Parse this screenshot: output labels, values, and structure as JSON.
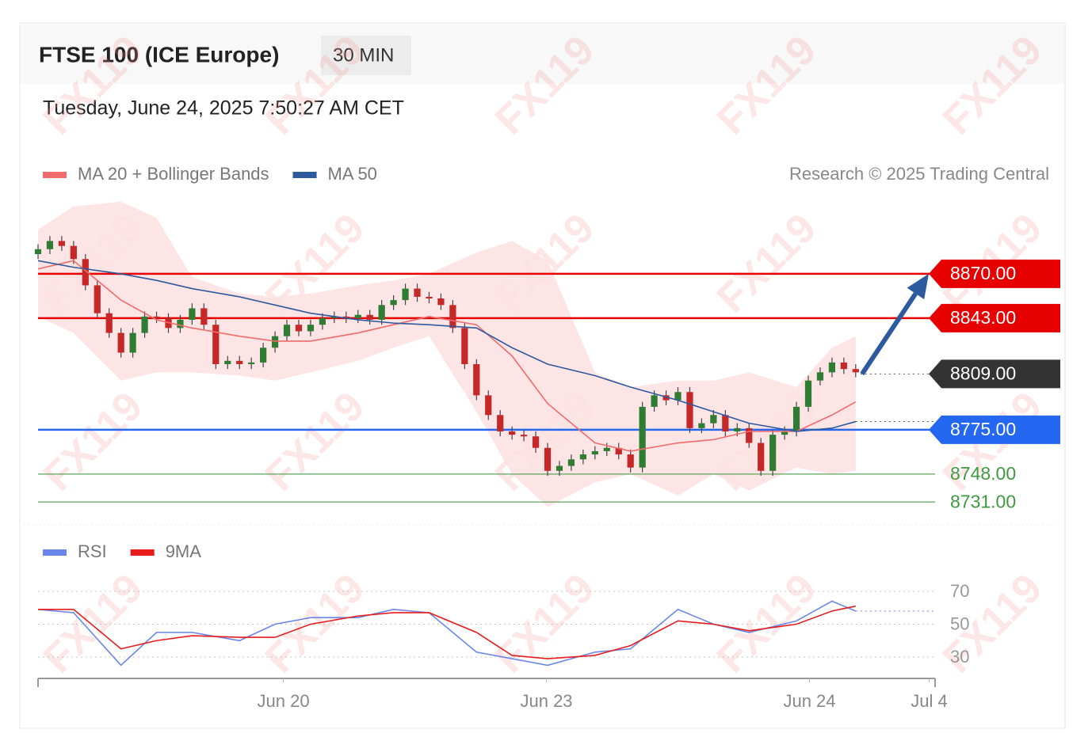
{
  "header": {
    "title": "FTSE 100 (ICE Europe)",
    "interval": "30 MIN",
    "timestamp": "Tuesday, June 24, 2025 7:50:27 AM CET",
    "credit": "Research © 2025 Trading Central",
    "watermark": "FX119"
  },
  "chart_data": [
    {
      "type": "candlestick",
      "xlim": [
        0,
        75.7
      ],
      "ylim": [
        8720,
        8916
      ],
      "candles": {
        "up_color": "#2e7d32",
        "down_color": "#c62828",
        "open": [
          8882,
          8885,
          8890,
          8887,
          8879,
          8863,
          8846,
          8834,
          8822,
          8834,
          8844,
          8843,
          8837,
          8842,
          8849,
          8839,
          8815,
          8817,
          8815,
          8816,
          8825,
          8832,
          8839,
          8835,
          8839,
          8843,
          8844,
          8843,
          8845,
          8842,
          8851,
          8854,
          8861,
          8856,
          8855,
          8851,
          8837,
          8815,
          8796,
          8784,
          8774,
          8772,
          8771,
          8764,
          8750,
          8753,
          8757,
          8760,
          8762,
          8764,
          8760,
          8752,
          8789,
          8796,
          8793,
          8798,
          8776,
          8779,
          8784,
          8774,
          8776,
          8767,
          8750,
          8772,
          8774,
          8789,
          8805,
          8810,
          8816,
          8812
        ],
        "high": [
          8888,
          8893,
          8893,
          8890,
          8882,
          8866,
          8849,
          8837,
          8837,
          8847,
          8847,
          8846,
          8845,
          8852,
          8852,
          8842,
          8820,
          8820,
          8819,
          8828,
          8835,
          8842,
          8842,
          8842,
          8846,
          8847,
          8847,
          8848,
          8848,
          8854,
          8857,
          8864,
          8864,
          8859,
          8858,
          8854,
          8840,
          8818,
          8799,
          8787,
          8777,
          8775,
          8774,
          8767,
          8756,
          8760,
          8763,
          8765,
          8767,
          8767,
          8763,
          8792,
          8799,
          8799,
          8801,
          8801,
          8782,
          8787,
          8787,
          8779,
          8779,
          8770,
          8775,
          8777,
          8792,
          8808,
          8813,
          8819,
          8819,
          8815
        ],
        "low": [
          8879,
          8882,
          8884,
          8876,
          8860,
          8843,
          8831,
          8819,
          8819,
          8831,
          8840,
          8834,
          8834,
          8839,
          8836,
          8812,
          8812,
          8812,
          8812,
          8813,
          8822,
          8829,
          8832,
          8832,
          8836,
          8840,
          8840,
          8840,
          8839,
          8839,
          8848,
          8851,
          8853,
          8852,
          8848,
          8834,
          8812,
          8793,
          8781,
          8771,
          8769,
          8768,
          8761,
          8747,
          8747,
          8750,
          8754,
          8757,
          8759,
          8757,
          8749,
          8749,
          8786,
          8790,
          8790,
          8773,
          8773,
          8776,
          8771,
          8771,
          8764,
          8747,
          8747,
          8769,
          8771,
          8786,
          8802,
          8807,
          8809,
          8807
        ],
        "close": [
          8885,
          8890,
          8887,
          8879,
          8863,
          8846,
          8834,
          8822,
          8834,
          8844,
          8843,
          8837,
          8842,
          8849,
          8839,
          8815,
          8817,
          8815,
          8816,
          8825,
          8832,
          8839,
          8835,
          8839,
          8843,
          8844,
          8843,
          8845,
          8842,
          8851,
          8854,
          8861,
          8856,
          8855,
          8851,
          8837,
          8815,
          8796,
          8784,
          8774,
          8772,
          8771,
          8764,
          8750,
          8753,
          8757,
          8760,
          8762,
          8764,
          8760,
          8752,
          8789,
          8796,
          8793,
          8798,
          8776,
          8779,
          8784,
          8774,
          8776,
          8767,
          8750,
          8772,
          8774,
          8789,
          8805,
          8810,
          8816,
          8812,
          8810
        ]
      },
      "series": [
        {
          "name": "MA 20 + Bollinger Bands",
          "color": "#f26b6b",
          "band_color": "#fde0e0",
          "x": [
            0,
            3,
            7,
            10,
            13,
            17,
            20,
            23,
            27,
            30,
            33,
            37,
            40,
            43,
            47,
            50,
            54,
            57,
            60,
            64,
            67,
            69
          ],
          "values": [
            8873,
            8878,
            8854,
            8842,
            8837,
            8832,
            8829,
            8829,
            8834,
            8839,
            8844,
            8839,
            8820,
            8791,
            8767,
            8762,
            8767,
            8769,
            8774,
            8774,
            8784,
            8792
          ],
          "upper": [
            8897,
            8911,
            8914,
            8904,
            8868,
            8858,
            8856,
            8858,
            8863,
            8866,
            8870,
            8883,
            8890,
            8878,
            8810,
            8801,
            8805,
            8805,
            8810,
            8801,
            8825,
            8832
          ],
          "lower": [
            8844,
            8834,
            8805,
            8810,
            8810,
            8808,
            8805,
            8810,
            8817,
            8825,
            8832,
            8786,
            8748,
            8728,
            8743,
            8748,
            8735,
            8748,
            8738,
            8752,
            8748,
            8750
          ]
        },
        {
          "name": "MA 50",
          "color": "#2d5a9e",
          "x": [
            0,
            3,
            7,
            10,
            13,
            17,
            20,
            23,
            27,
            30,
            33,
            37,
            40,
            43,
            47,
            50,
            54,
            57,
            60,
            64,
            67,
            69
          ],
          "values": [
            8878,
            8874,
            8870,
            8866,
            8861,
            8856,
            8851,
            8846,
            8842,
            8840,
            8839,
            8837,
            8825,
            8815,
            8808,
            8801,
            8793,
            8786,
            8779,
            8774,
            8776,
            8780
          ]
        }
      ],
      "levels": [
        {
          "value": 8870,
          "label": "8870.00",
          "color": "#e60000",
          "style": "box",
          "line": "solid"
        },
        {
          "value": 8843,
          "label": "8843.00",
          "color": "#e60000",
          "style": "box",
          "line": "solid"
        },
        {
          "value": 8809,
          "label": "8809.00",
          "color": "#333333",
          "style": "box",
          "line": "dotted"
        },
        {
          "value": 8775,
          "label": "8775.00",
          "color": "#2468f2",
          "style": "box",
          "line": "solid"
        },
        {
          "value": 8748,
          "label": "8748.00",
          "color": "#3f9a3f",
          "style": "text",
          "line": "solid"
        },
        {
          "value": 8731,
          "label": "8731.00",
          "color": "#3f9a3f",
          "style": "text",
          "line": "solid"
        }
      ],
      "forecast": {
        "from_level": 2,
        "to_level": 0,
        "color": "#2d5a9e"
      }
    },
    {
      "type": "line",
      "xlim": [
        0,
        75.7
      ],
      "ylim": [
        17,
        75
      ],
      "yticks": [
        30,
        50,
        70
      ],
      "xticks": [
        {
          "value": 20.7,
          "label": "Jun 20"
        },
        {
          "value": 42.9,
          "label": "Jun 23"
        },
        {
          "value": 65.1,
          "label": "Jun 24"
        },
        {
          "value": 75.2,
          "label": "Jul 4"
        }
      ],
      "series": [
        {
          "name": "RSI",
          "color": "#6a86e8",
          "x": [
            0,
            3,
            7,
            10,
            13,
            17,
            20,
            23,
            27,
            30,
            33,
            37,
            40,
            43,
            47,
            50,
            54,
            57,
            60,
            64,
            67,
            69
          ],
          "values": [
            59,
            57,
            25,
            45,
            45,
            40,
            50,
            54,
            54,
            59,
            57,
            33,
            29,
            25,
            33,
            35,
            59,
            50,
            45,
            52,
            64,
            58
          ]
        },
        {
          "name": "9MA",
          "color": "#e81c1c",
          "x": [
            0,
            3,
            7,
            10,
            13,
            17,
            20,
            23,
            27,
            30,
            33,
            37,
            40,
            43,
            47,
            50,
            54,
            57,
            60,
            64,
            67,
            69
          ],
          "values": [
            59,
            59,
            35,
            40,
            43,
            42,
            42,
            50,
            55,
            57,
            57,
            45,
            31,
            29,
            31,
            37,
            52,
            50,
            46,
            50,
            58,
            61
          ]
        }
      ]
    }
  ]
}
